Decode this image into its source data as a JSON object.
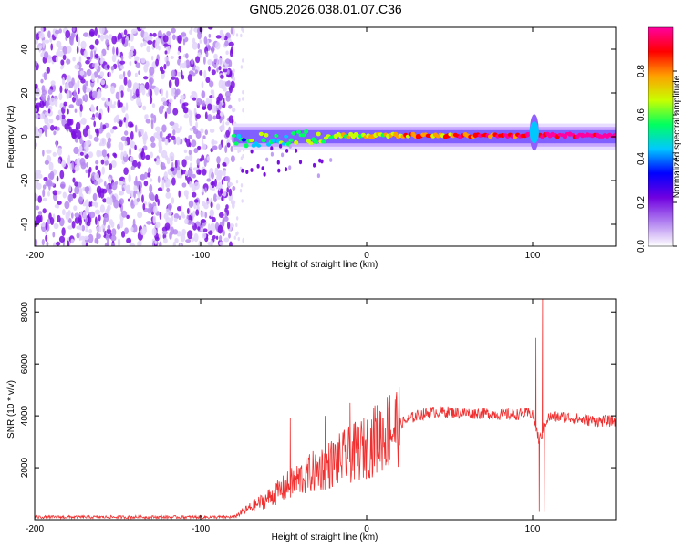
{
  "title": "GN05.2026.038.01.07.C36",
  "chart_data": [
    {
      "type": "heatmap",
      "name": "spectrogram",
      "xlabel": "Height of straight line (km)",
      "ylabel": "Frequency (Hz)",
      "xlim": [
        -200,
        150
      ],
      "ylim": [
        -50,
        50
      ],
      "xticks": [
        -200,
        -100,
        0,
        100
      ],
      "yticks": [
        -40,
        -20,
        0,
        20,
        40
      ],
      "noise_region_x": [
        -200,
        -80
      ],
      "signal_band_hz": [
        -4,
        4
      ],
      "colorbar": {
        "label": "Normalized spectral amplitude",
        "range": [
          0,
          1
        ],
        "ticks": [
          0.0,
          0.2,
          0.4,
          0.6,
          0.8
        ],
        "colors": [
          "#ffffff",
          "#b080f0",
          "#7000e0",
          "#0000ff",
          "#00c8ff",
          "#00ff60",
          "#c8ff00",
          "#ffa000",
          "#ff0000",
          "#ff00a0"
        ]
      }
    },
    {
      "type": "line",
      "name": "snr",
      "xlabel": "Height of straight line (km)",
      "ylabel": "SNR (10 * v/v)",
      "xlim": [
        -200,
        150
      ],
      "ylim": [
        0,
        8500
      ],
      "xticks": [
        -200,
        -100,
        0,
        100
      ],
      "yticks": [
        2000,
        4000,
        6000,
        8000
      ],
      "color": "#f03030",
      "profile": {
        "x": [
          -200,
          -80,
          -75,
          -60,
          -50,
          -40,
          -30,
          -20,
          -10,
          0,
          10,
          20,
          30,
          40,
          50,
          60,
          70,
          80,
          90,
          100,
          104,
          108,
          110,
          120,
          130,
          140,
          150
        ],
        "y": [
          100,
          100,
          300,
          800,
          1200,
          1600,
          1900,
          2200,
          2500,
          2800,
          3300,
          3700,
          4000,
          4150,
          4150,
          4100,
          4100,
          4050,
          4050,
          4100,
          3000,
          3800,
          3950,
          3950,
          3850,
          3800,
          3800
        ]
      },
      "spikes": [
        {
          "x": -46,
          "y": 3900
        },
        {
          "x": -25,
          "y": 4000
        },
        {
          "x": -10,
          "y": 4500
        },
        {
          "x": 5,
          "y": 4400
        },
        {
          "x": 14,
          "y": 4800
        },
        {
          "x": 102,
          "y": 7000
        },
        {
          "x": 106,
          "y": 8500
        }
      ],
      "dips": [
        {
          "x": 104,
          "y": 300
        },
        {
          "x": 107,
          "y": 300
        }
      ]
    }
  ]
}
